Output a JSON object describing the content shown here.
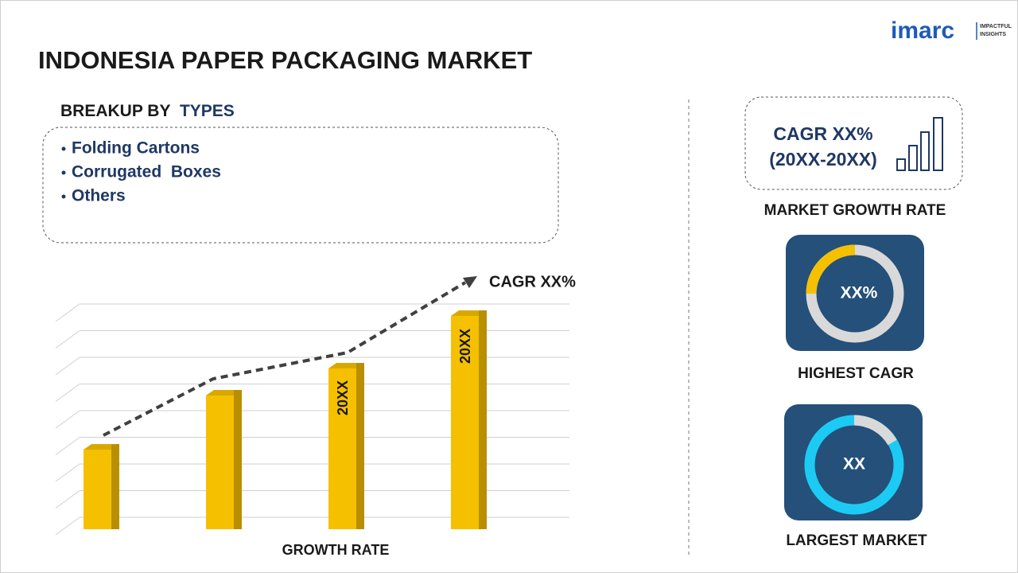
{
  "title": "INDONESIA PAPER PACKAGING MARKET",
  "logo": {
    "brand": "imarc",
    "tagline": [
      "IMPACTFUL",
      "INSIGHTS"
    ]
  },
  "breakup": {
    "heading_prefix": "BREAKUP BY",
    "heading_highlight": "TYPES",
    "items": [
      "Folding Cartons",
      "Corrugated  Boxes",
      "Others"
    ]
  },
  "growth_chart": {
    "trend_label": "CAGR XX%",
    "bar_labels": [
      "20XX",
      "20XX"
    ],
    "axis_label": "GROWTH RATE"
  },
  "market_growth": {
    "cagr": "CAGR XX%",
    "period": "(20XX-20XX)",
    "label": "MARKET GROWTH RATE"
  },
  "highest_cagr": {
    "value": "XX%",
    "label": "HIGHEST CAGR"
  },
  "largest_market": {
    "value": "XX",
    "label": "LARGEST MARKET"
  }
}
